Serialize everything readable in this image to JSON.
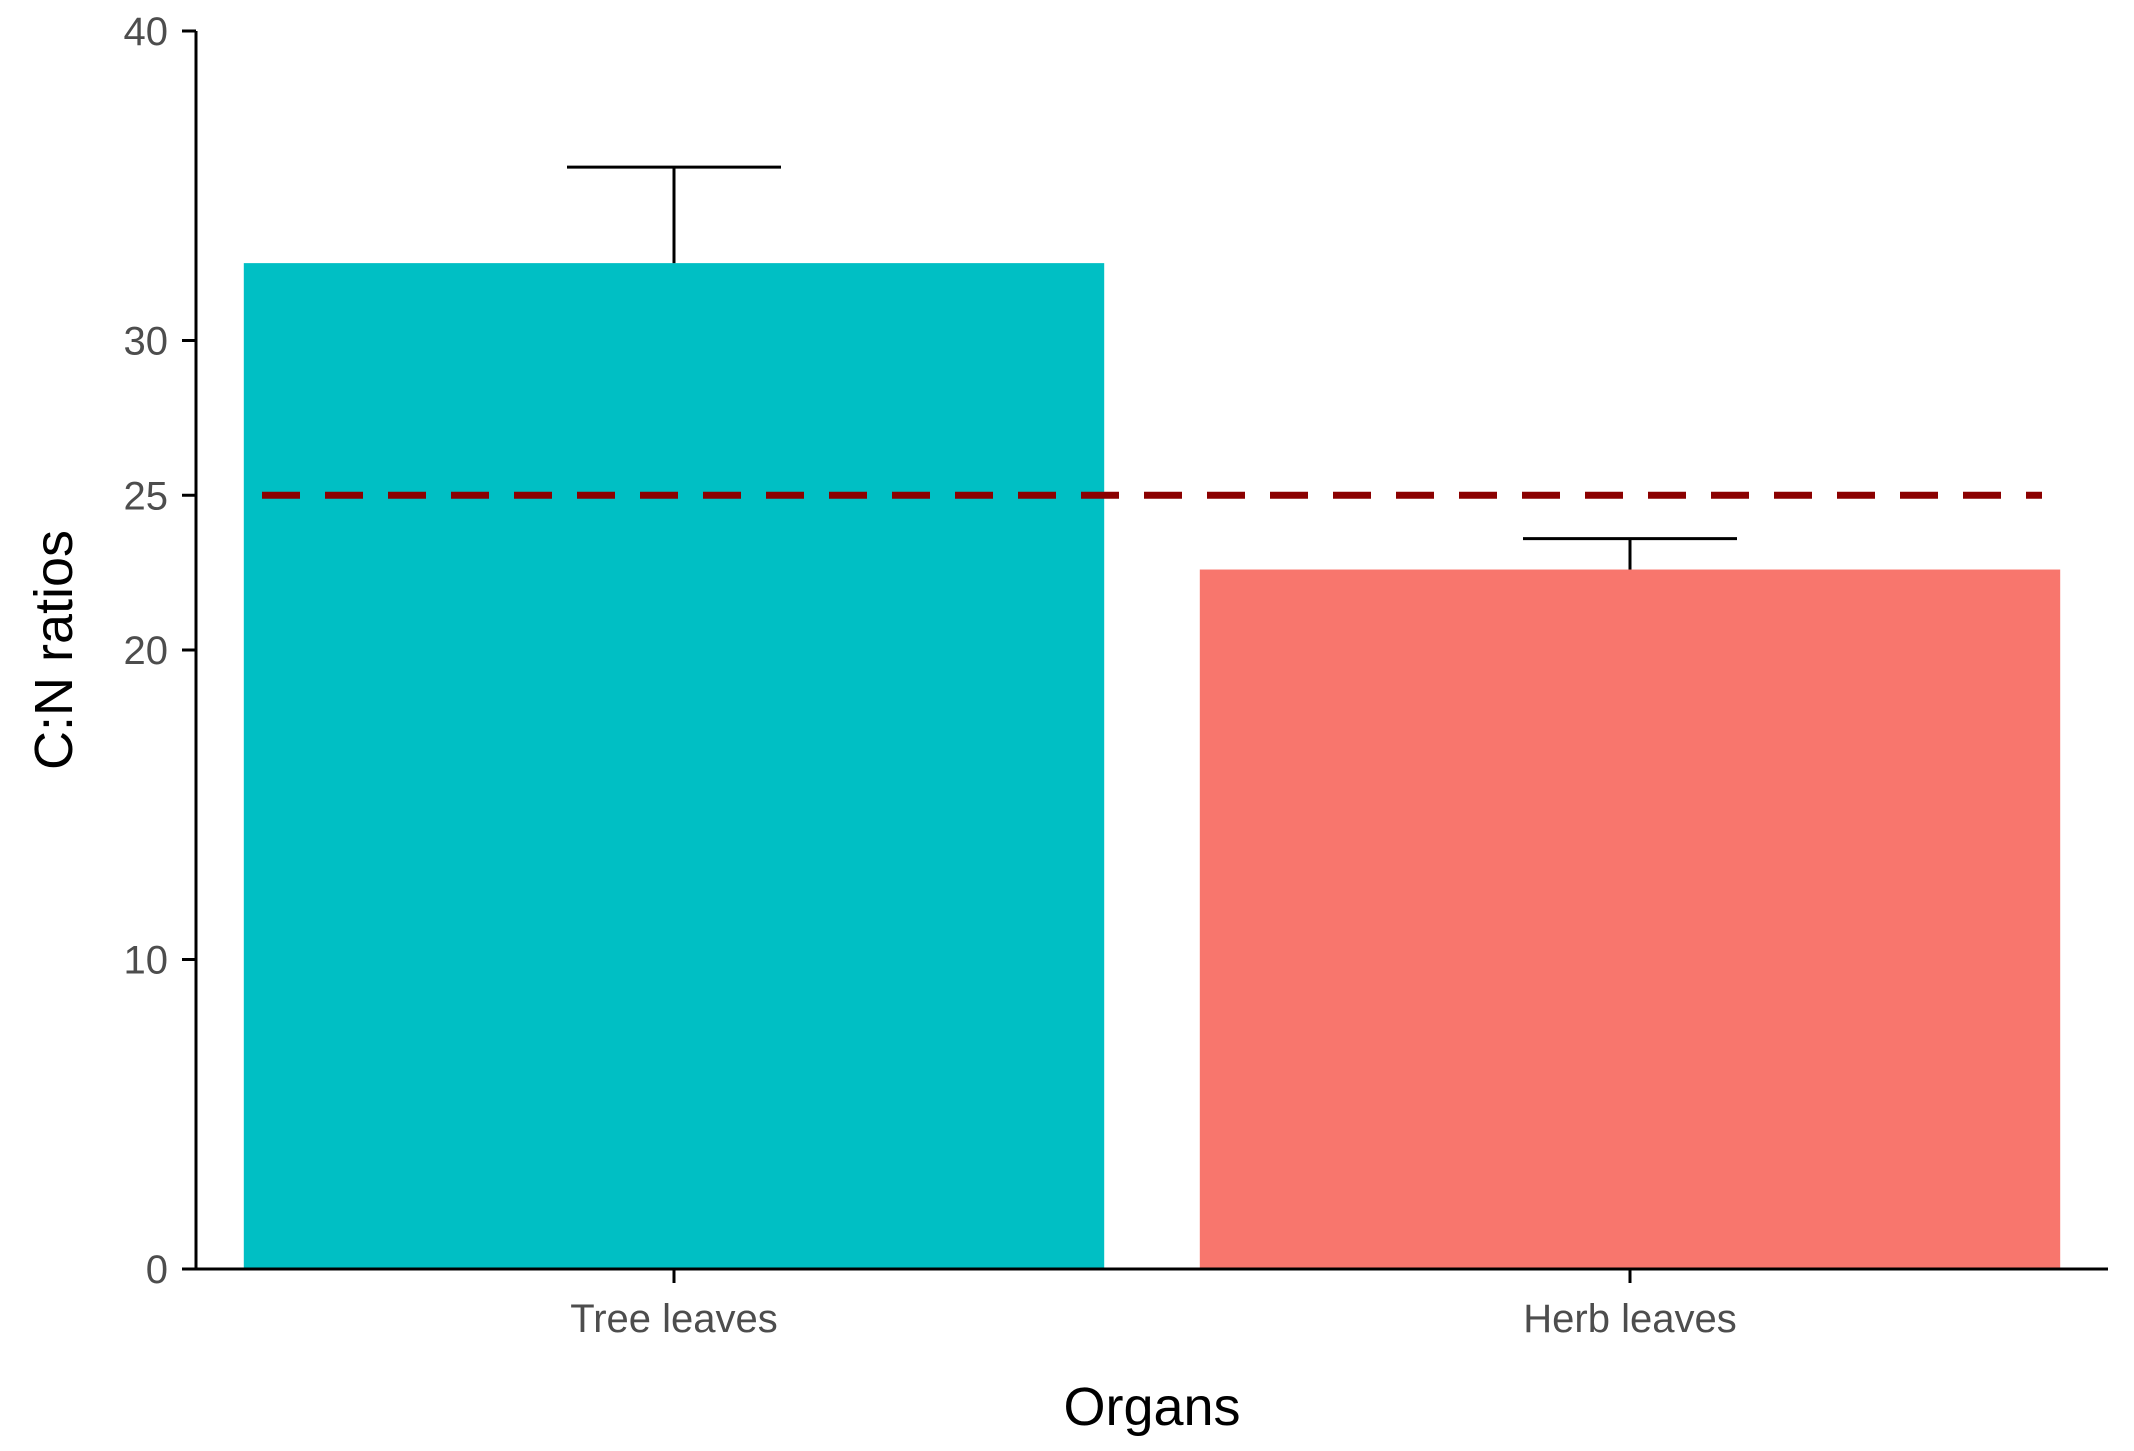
{
  "chart_data": {
    "type": "bar",
    "title": "",
    "xlabel": "Organs",
    "ylabel": "C:N ratios",
    "categories": [
      "Tree leaves",
      "Herb leaves"
    ],
    "values": [
      32.5,
      22.6
    ],
    "error_upper": [
      35.6,
      23.6
    ],
    "colors": [
      "#00BFC4",
      "#F8766D"
    ],
    "ylim": [
      0,
      40
    ],
    "yticks": [
      0,
      10,
      20,
      25,
      30,
      40
    ],
    "reference_line": {
      "y": 25,
      "color": "#8B0000",
      "style": "dashed"
    },
    "grid": false,
    "legend": "none"
  }
}
